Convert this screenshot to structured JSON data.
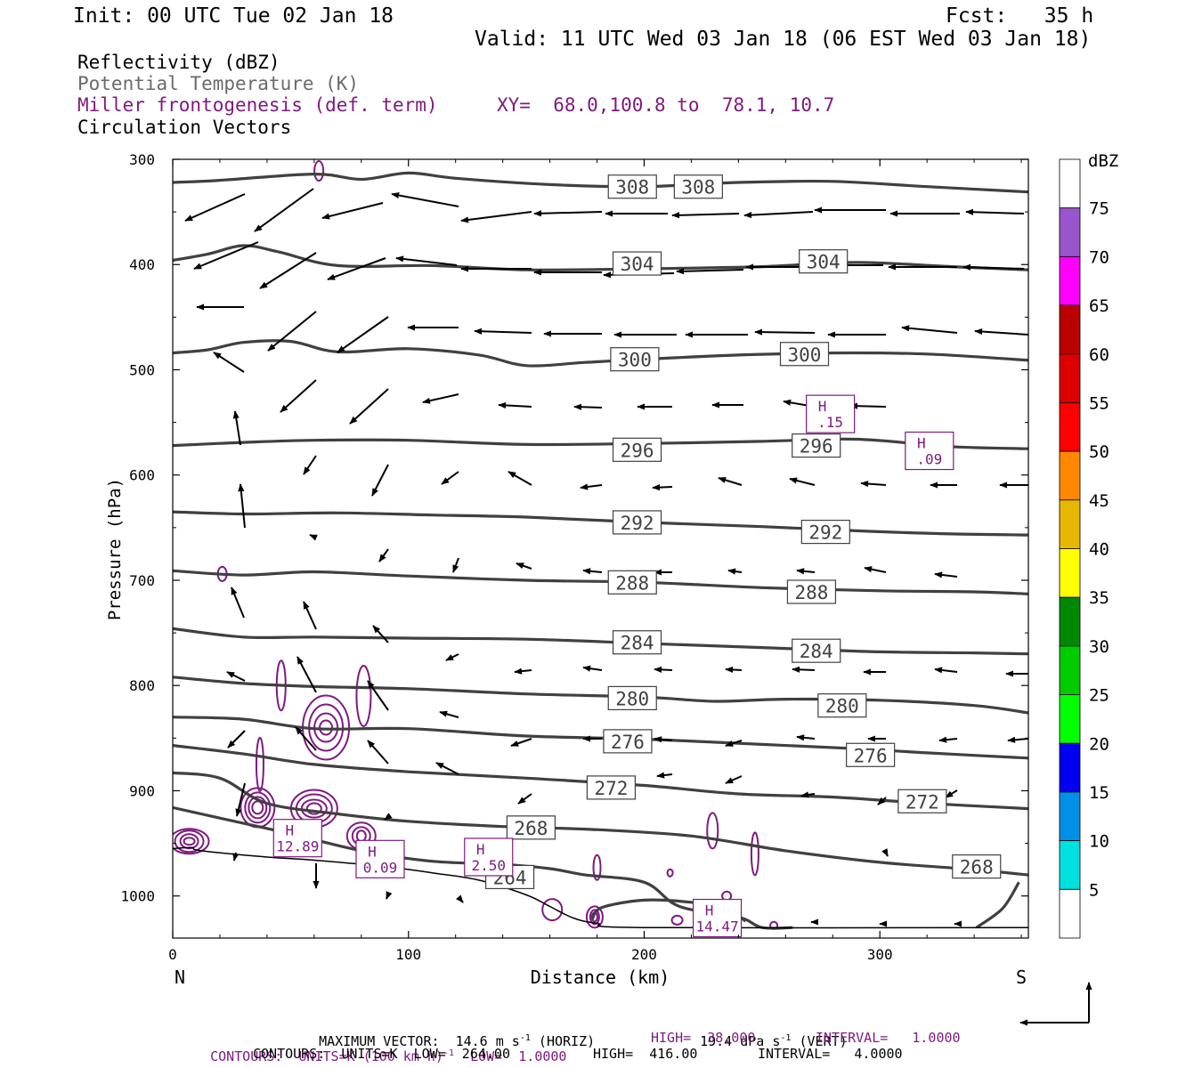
{
  "header": {
    "init": "Init: 00 UTC Tue 02 Jan 18",
    "fcst": "Fcst:   35 h",
    "valid": "Valid: 11 UTC Wed 03 Jan 18 (06 EST Wed 03 Jan 18)"
  },
  "fields": {
    "reflectivity": "Reflectivity (dBZ)",
    "theta": "Potential Temperature (K)",
    "frontogenesis": "Miller frontogenesis (def. term)",
    "xy": "XY=  68.0,100.8 to  78.1, 10.7",
    "vectors": "Circulation Vectors"
  },
  "colors": {
    "theta_line": "#404040",
    "fronto_line": "#7f1a80",
    "vector": "#000000",
    "terrain": "#000000"
  },
  "footer": {
    "max_vector_label": "MAXIMUM VECTOR:  14.6 m s",
    "max_vector_h": "(HORIZ)",
    "max_vector_vval": "19.4 dPa s",
    "max_vector_v": "(VERT)",
    "fronto_units": "CONTOURS:  UNITS=K (100 km h)",
    "fronto_low": "LOW=  1.0000",
    "fronto_high": "HIGH=  38.000",
    "fronto_interval": "INTERVAL=   1.0000",
    "theta_units": "CONTOURS:  UNITS=K  LOW=  264.00",
    "theta_high": "HIGH=  416.00",
    "theta_interval": "INTERVAL=   4.0000",
    "exp_minus1": "-1"
  },
  "chart_data": {
    "type": "contour",
    "xlabel": "Distance (km)",
    "ylabel": "Pressure (hPa)",
    "xlim": [
      0,
      363
    ],
    "ylim": [
      300,
      1040
    ],
    "x_ticks": [
      0,
      100,
      200,
      300
    ],
    "y_ticks": [
      300,
      400,
      500,
      600,
      700,
      800,
      900,
      1000
    ],
    "x_end_labels": [
      "N",
      "S"
    ],
    "colorbar": {
      "title": "dBZ",
      "levels": [
        5,
        10,
        15,
        20,
        25,
        30,
        35,
        40,
        45,
        50,
        55,
        60,
        65,
        70,
        75
      ],
      "colors": [
        "#ffffff",
        "#00e0e0",
        "#0090e8",
        "#0000f0",
        "#00ff00",
        "#00cc00",
        "#008800",
        "#ffff00",
        "#e6b800",
        "#ff8800",
        "#ff0000",
        "#dd0000",
        "#bb0000",
        "#ff00ff",
        "#9955cc",
        "#ffffff"
      ]
    },
    "theta_contours": [
      {
        "level": 308,
        "points": [
          [
            0,
            322
          ],
          [
            20,
            320
          ],
          [
            60,
            314
          ],
          [
            80,
            319
          ],
          [
            100,
            313
          ],
          [
            120,
            318
          ],
          [
            160,
            324
          ],
          [
            200,
            326
          ],
          [
            240,
            322
          ],
          [
            280,
            321
          ],
          [
            320,
            326
          ],
          [
            363,
            331
          ]
        ],
        "labels": [
          [
            195,
            326
          ],
          [
            223,
            326
          ]
        ]
      },
      {
        "level": 304,
        "points": [
          [
            0,
            396
          ],
          [
            15,
            390
          ],
          [
            30,
            382
          ],
          [
            45,
            388
          ],
          [
            70,
            401
          ],
          [
            110,
            401
          ],
          [
            150,
            405
          ],
          [
            200,
            404
          ],
          [
            250,
            402
          ],
          [
            290,
            398
          ],
          [
            330,
            402
          ],
          [
            363,
            405
          ]
        ],
        "labels": [
          [
            197,
            399
          ],
          [
            276,
            397
          ]
        ]
      },
      {
        "level": 300,
        "points": [
          [
            0,
            484
          ],
          [
            15,
            481
          ],
          [
            30,
            474
          ],
          [
            50,
            473
          ],
          [
            70,
            483
          ],
          [
            100,
            480
          ],
          [
            130,
            486
          ],
          [
            150,
            496
          ],
          [
            175,
            493
          ],
          [
            200,
            490
          ],
          [
            240,
            486
          ],
          [
            280,
            484
          ],
          [
            320,
            485
          ],
          [
            363,
            491
          ]
        ],
        "labels": [
          [
            196,
            490
          ],
          [
            268,
            485
          ]
        ]
      },
      {
        "level": 296,
        "points": [
          [
            0,
            572
          ],
          [
            30,
            569
          ],
          [
            60,
            567
          ],
          [
            100,
            567
          ],
          [
            150,
            571
          ],
          [
            200,
            570
          ],
          [
            250,
            568
          ],
          [
            290,
            566
          ],
          [
            330,
            573
          ],
          [
            363,
            575
          ]
        ],
        "labels": [
          [
            197,
            576
          ],
          [
            273,
            572
          ]
        ]
      },
      {
        "level": 292,
        "points": [
          [
            0,
            635
          ],
          [
            30,
            637
          ],
          [
            70,
            636
          ],
          [
            110,
            638
          ],
          [
            150,
            640
          ],
          [
            200,
            645
          ],
          [
            250,
            649
          ],
          [
            290,
            653
          ],
          [
            330,
            656
          ],
          [
            363,
            657
          ]
        ],
        "labels": [
          [
            197,
            645
          ],
          [
            277,
            654
          ]
        ]
      },
      {
        "level": 288,
        "points": [
          [
            0,
            691
          ],
          [
            30,
            695
          ],
          [
            60,
            692
          ],
          [
            100,
            696
          ],
          [
            150,
            700
          ],
          [
            200,
            702
          ],
          [
            250,
            707
          ],
          [
            300,
            710
          ],
          [
            340,
            711
          ],
          [
            363,
            713
          ]
        ],
        "labels": [
          [
            195,
            702
          ],
          [
            271,
            711
          ]
        ]
      },
      {
        "level": 284,
        "points": [
          [
            0,
            746
          ],
          [
            30,
            754
          ],
          [
            60,
            754
          ],
          [
            100,
            755
          ],
          [
            150,
            756
          ],
          [
            200,
            760
          ],
          [
            250,
            764
          ],
          [
            300,
            768
          ],
          [
            340,
            769
          ],
          [
            363,
            770
          ]
        ],
        "labels": [
          [
            197,
            759
          ],
          [
            273,
            767
          ]
        ]
      },
      {
        "level": 280,
        "points": [
          [
            0,
            792
          ],
          [
            30,
            798
          ],
          [
            60,
            801
          ],
          [
            100,
            803
          ],
          [
            150,
            808
          ],
          [
            200,
            811
          ],
          [
            230,
            815
          ],
          [
            260,
            813
          ],
          [
            300,
            814
          ],
          [
            340,
            819
          ],
          [
            363,
            826
          ]
        ],
        "labels": [
          [
            195,
            812
          ],
          [
            284,
            819
          ]
        ]
      },
      {
        "level": 276,
        "points": [
          [
            0,
            830
          ],
          [
            30,
            832
          ],
          [
            60,
            841
          ],
          [
            100,
            841
          ],
          [
            150,
            848
          ],
          [
            200,
            851
          ],
          [
            250,
            856
          ],
          [
            290,
            860
          ],
          [
            320,
            864
          ],
          [
            363,
            869
          ]
        ],
        "labels": [
          [
            193,
            853
          ],
          [
            296,
            866
          ]
        ]
      },
      {
        "level": 272,
        "points": [
          [
            0,
            857
          ],
          [
            30,
            865
          ],
          [
            60,
            875
          ],
          [
            100,
            882
          ],
          [
            150,
            888
          ],
          [
            200,
            895
          ],
          [
            240,
            903
          ],
          [
            280,
            906
          ],
          [
            320,
            912
          ],
          [
            363,
            917
          ]
        ],
        "labels": [
          [
            186,
            897
          ],
          [
            318,
            910
          ]
        ]
      },
      {
        "level": 268,
        "points": [
          [
            0,
            883
          ],
          [
            20,
            888
          ],
          [
            40,
            912
          ],
          [
            70,
            922
          ],
          [
            100,
            929
          ],
          [
            140,
            934
          ],
          [
            180,
            937
          ],
          [
            220,
            943
          ],
          [
            260,
            957
          ],
          [
            300,
            968
          ],
          [
            340,
            975
          ],
          [
            363,
            980
          ]
        ],
        "labels": [
          [
            152,
            935
          ],
          [
            341,
            972
          ]
        ]
      },
      {
        "level": 264,
        "points": [
          [
            0,
            916
          ],
          [
            20,
            926
          ],
          [
            50,
            941
          ],
          [
            80,
            957
          ],
          [
            110,
            967
          ],
          [
            140,
            970
          ],
          [
            160,
            974
          ],
          [
            175,
            980
          ],
          [
            200,
            987
          ],
          [
            215,
            1010
          ],
          [
            240,
            1020
          ],
          [
            250,
            1030
          ],
          [
            263,
            1030
          ]
        ],
        "labels": [
          [
            143,
            982
          ]
        ]
      },
      {
        "level": 264,
        "points": [
          [
            178,
            1022
          ],
          [
            182,
            1011
          ],
          [
            200,
            1004
          ],
          [
            220,
            1006
          ],
          [
            235,
            1012
          ],
          [
            243,
            1024
          ]
        ],
        "labels": []
      },
      {
        "level": 264,
        "points": [
          [
            341,
            1030
          ],
          [
            352,
            1012
          ],
          [
            359,
            987
          ]
        ],
        "labels": []
      }
    ],
    "terrain": [
      [
        0,
        955
      ],
      [
        8,
        954
      ],
      [
        12,
        957
      ],
      [
        40,
        963
      ],
      [
        60,
        966
      ],
      [
        90,
        972
      ],
      [
        110,
        978
      ],
      [
        130,
        985
      ],
      [
        150,
        999
      ],
      [
        160,
        1010
      ],
      [
        170,
        1021
      ],
      [
        180,
        1026
      ],
      [
        200,
        1030
      ],
      [
        363,
        1030
      ]
    ],
    "fronto_maxima": [
      {
        "label": "H",
        "value": "12.89",
        "x": 53,
        "p": 945
      },
      {
        "label": "H",
        "value": "0.09",
        "x": 88,
        "p": 965
      },
      {
        "label": "H",
        "value": "2.50",
        "x": 134,
        "p": 963
      },
      {
        "label": "H",
        "value": "14.47",
        "x": 231,
        "p": 1021
      },
      {
        "label": "H",
        "value": ".15",
        "x": 279,
        "p": 542
      },
      {
        "label": "H",
        "value": ".09",
        "x": 321,
        "p": 577
      }
    ]
  }
}
